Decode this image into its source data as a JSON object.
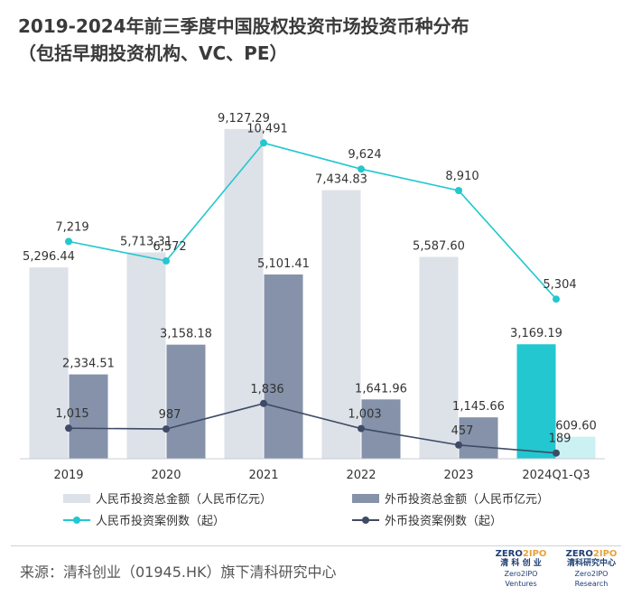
{
  "title": {
    "line1": "2019-2024年前三季度中国股权投资市场投资币种分布",
    "line2": "（包括早期投资机构、VC、PE）"
  },
  "chart_data": {
    "type": "bar",
    "categories": [
      "2019",
      "2020",
      "2021",
      "2022",
      "2023",
      "2024Q1-Q3"
    ],
    "series": [
      {
        "name": "人民币投资总金额（人民币亿元）",
        "kind": "bar",
        "values": [
          5296.44,
          5713.31,
          9127.29,
          7434.83,
          5587.6,
          3169.19
        ],
        "labels": [
          "5,296.44",
          "5,713.31",
          "9,127.29",
          "7,434.83",
          "5,587.60",
          "3,169.19"
        ],
        "color": "#dde1e8",
        "highlight_color": "#22c7d0"
      },
      {
        "name": "外币投资总金额（人民币亿元）",
        "kind": "bar",
        "values": [
          2334.51,
          3158.18,
          5101.41,
          1641.96,
          1145.66,
          609.6
        ],
        "labels": [
          "2,334.51",
          "3,158.18",
          "5,101.41",
          "1,641.96",
          "1,145.66",
          "609.60"
        ],
        "color": "#8592aa",
        "highlight_color": "#ccf1f3"
      },
      {
        "name": "人民币投资案例数（起）",
        "kind": "line",
        "values": [
          7219,
          6572,
          10491,
          9624,
          8910,
          5304
        ],
        "labels": [
          "7,219",
          "6,572",
          "10,491",
          "9,624",
          "8,910",
          "5,304"
        ],
        "color": "#22c7d0"
      },
      {
        "name": "外币投资案例数（起）",
        "kind": "line",
        "values": [
          1015,
          987,
          1836,
          1003,
          457,
          189
        ],
        "labels": [
          "1,015",
          "987",
          "1,836",
          "1,003",
          "457",
          "189"
        ],
        "color": "#3f4b66"
      }
    ],
    "bar_axis_max": 10000,
    "line_axis_max": 12000,
    "grid": false,
    "legend_position": "bottom"
  },
  "legend": {
    "rmb_amount": "人民币投资总金额（人民币亿元）",
    "fx_amount": "外币投资总金额（人民币亿元）",
    "rmb_count": "人民币投资案例数（起）",
    "fx_count": "外币投资案例数（起）"
  },
  "source": "来源：清科创业（01945.HK）旗下清科研究中心",
  "logos": {
    "left_brand_a": "ZERO",
    "left_brand_b": "2IPO",
    "left_cn": "清 科 创 业",
    "left_en": "Zero2IPO Ventures",
    "right_brand_a": "ZERO",
    "right_brand_b": "2IPO",
    "right_cn": "清科研究中心",
    "right_en": "Zero2IPO Research"
  }
}
